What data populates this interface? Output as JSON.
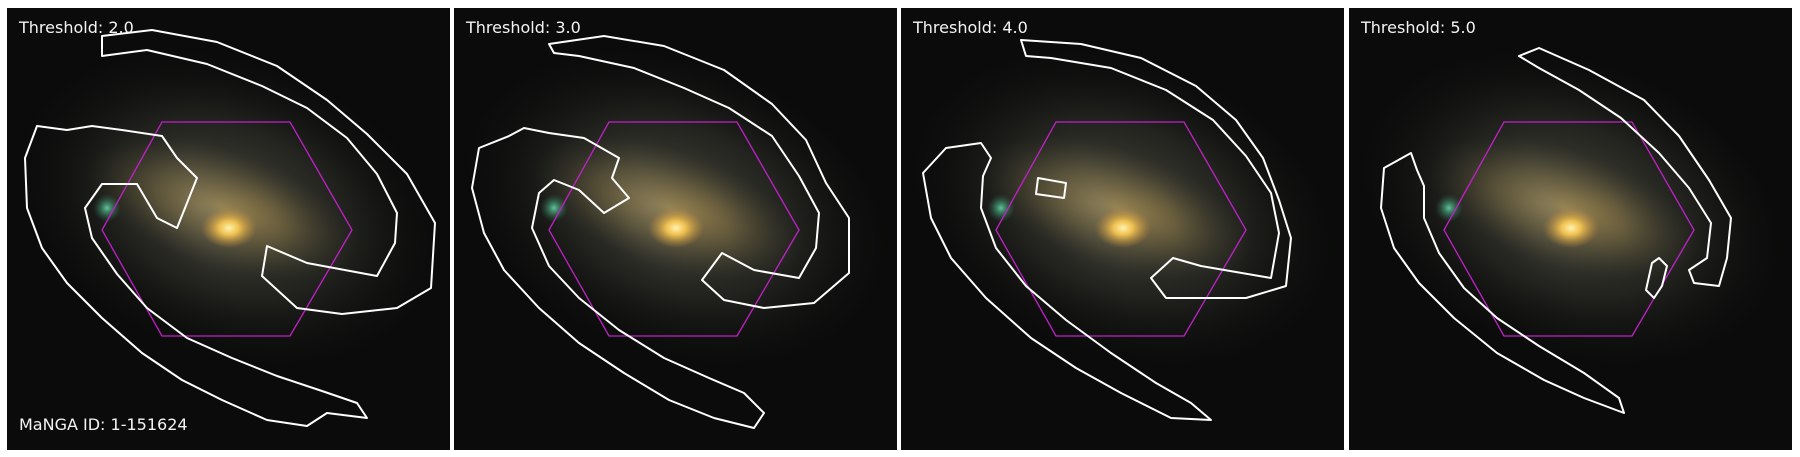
{
  "panels": [
    {
      "label": "Threshold: 2.0",
      "footer": "MaNGA ID: 1-151624"
    },
    {
      "label": "Threshold: 3.0"
    },
    {
      "label": "Threshold: 4.0"
    },
    {
      "label": "Threshold: 5.0"
    }
  ],
  "colors": {
    "sky": "#0a0b0a",
    "halo": "#4a4a40",
    "bulge": "#f5c551",
    "contour": "#ffffff",
    "hexagon": "#c021c8",
    "knot": "#3fae84"
  }
}
